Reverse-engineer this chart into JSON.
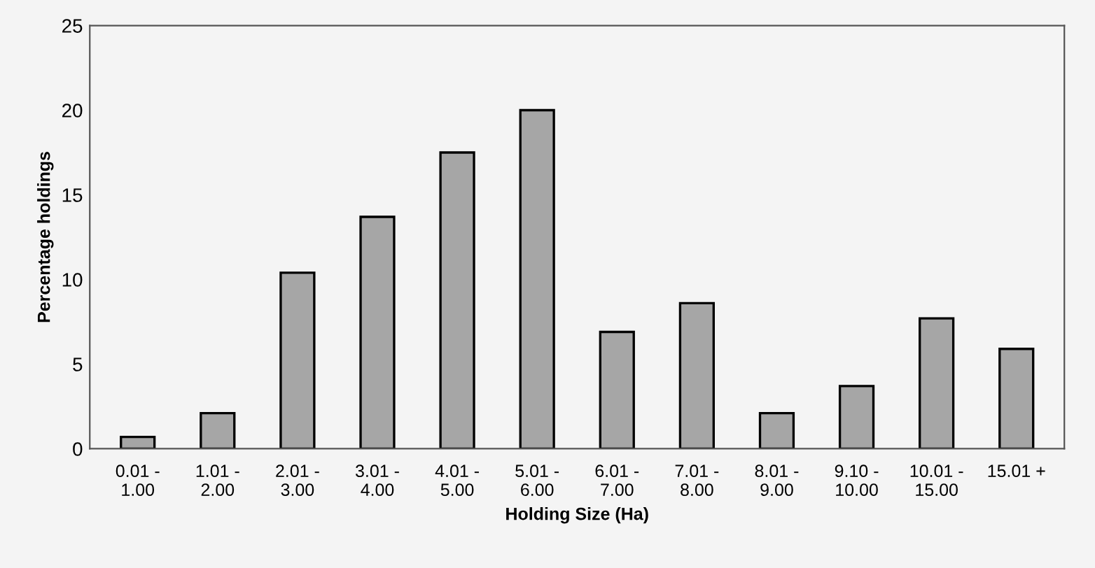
{
  "chart_data": {
    "type": "bar",
    "categories": [
      "0.01 -\n1.00",
      "1.01 -\n2.00",
      "2.01 -\n3.00",
      "3.01 -\n4.00",
      "4.01 -\n5.00",
      "5.01 -\n6.00",
      "6.01 -\n7.00",
      "7.01 -\n8.00",
      "8.01 -\n9.00",
      "9.10 -\n10.00",
      "10.01 -\n15.00",
      "15.01 +"
    ],
    "values": [
      0.7,
      2.1,
      10.4,
      13.7,
      17.5,
      20.0,
      6.9,
      8.6,
      2.1,
      3.7,
      7.7,
      5.9
    ],
    "color": "#a6a6a6",
    "xlabel": "Holding Size (Ha)",
    "ylabel": "Percentage holdings",
    "ylim": [
      0,
      25
    ],
    "yticks": [
      0,
      5,
      10,
      15,
      20,
      25
    ],
    "grid": false,
    "legend": false
  }
}
